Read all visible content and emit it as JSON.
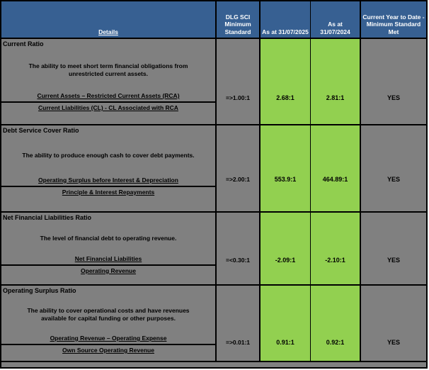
{
  "colors": {
    "header_blue": "#376092",
    "body_gray": "#808080",
    "value_green": "#92D050",
    "border_black": "#000000",
    "header_text": "#ffffff",
    "body_text": "#000000"
  },
  "header": {
    "details_label": "Details",
    "min_standard_label": "DLG SCI Minimum Standard",
    "col_2025_label": "As at 31/07/2025",
    "col_2024_label": "As at 31/07/2024",
    "met_label": "Current Year to Date -Minimum Standard Met"
  },
  "sections": [
    {
      "title": "Current Ratio",
      "description": "The ability to meet short term financial obligations from unrestricted current assets.",
      "numerator": "Current Assets – Restricted Current Assets (RCA)",
      "denominator": "Current Liabilities (CL) - CL Associated with RCA",
      "minimum_standard": "=>1.00:1",
      "value_2025": "2.68:1",
      "value_2024": "2.81:1",
      "standard_met": "YES"
    },
    {
      "title": "Debt Service Cover Ratio",
      "description": "The ability to produce enough cash to cover debt payments.",
      "numerator": "Operating Surplus before Interest & Depreciation",
      "denominator": "Principle & Interest Repayments",
      "minimum_standard": "=>2.00:1",
      "value_2025": "553.9:1",
      "value_2024": "464.89:1",
      "standard_met": "YES"
    },
    {
      "title": "Net Financial Liabilities Ratio",
      "description": "The level of financial debt to operating revenue.",
      "numerator": "Net Financial Liabilities",
      "denominator": "Operating Revenue",
      "minimum_standard": "=<0.30:1",
      "value_2025": "-2.09:1",
      "value_2024": "-2.10:1",
      "standard_met": "YES"
    },
    {
      "title": "Operating Surplus Ratio",
      "description": "The ability to cover operational costs and have revenues available for capital funding or other purposes.",
      "numerator": "Operating Revenue – Operating Expense",
      "denominator": "Own Source Operating Revenue",
      "minimum_standard": "=>0.01:1",
      "value_2025": "0.91:1",
      "value_2024": "0.92:1",
      "standard_met": "YES"
    }
  ]
}
